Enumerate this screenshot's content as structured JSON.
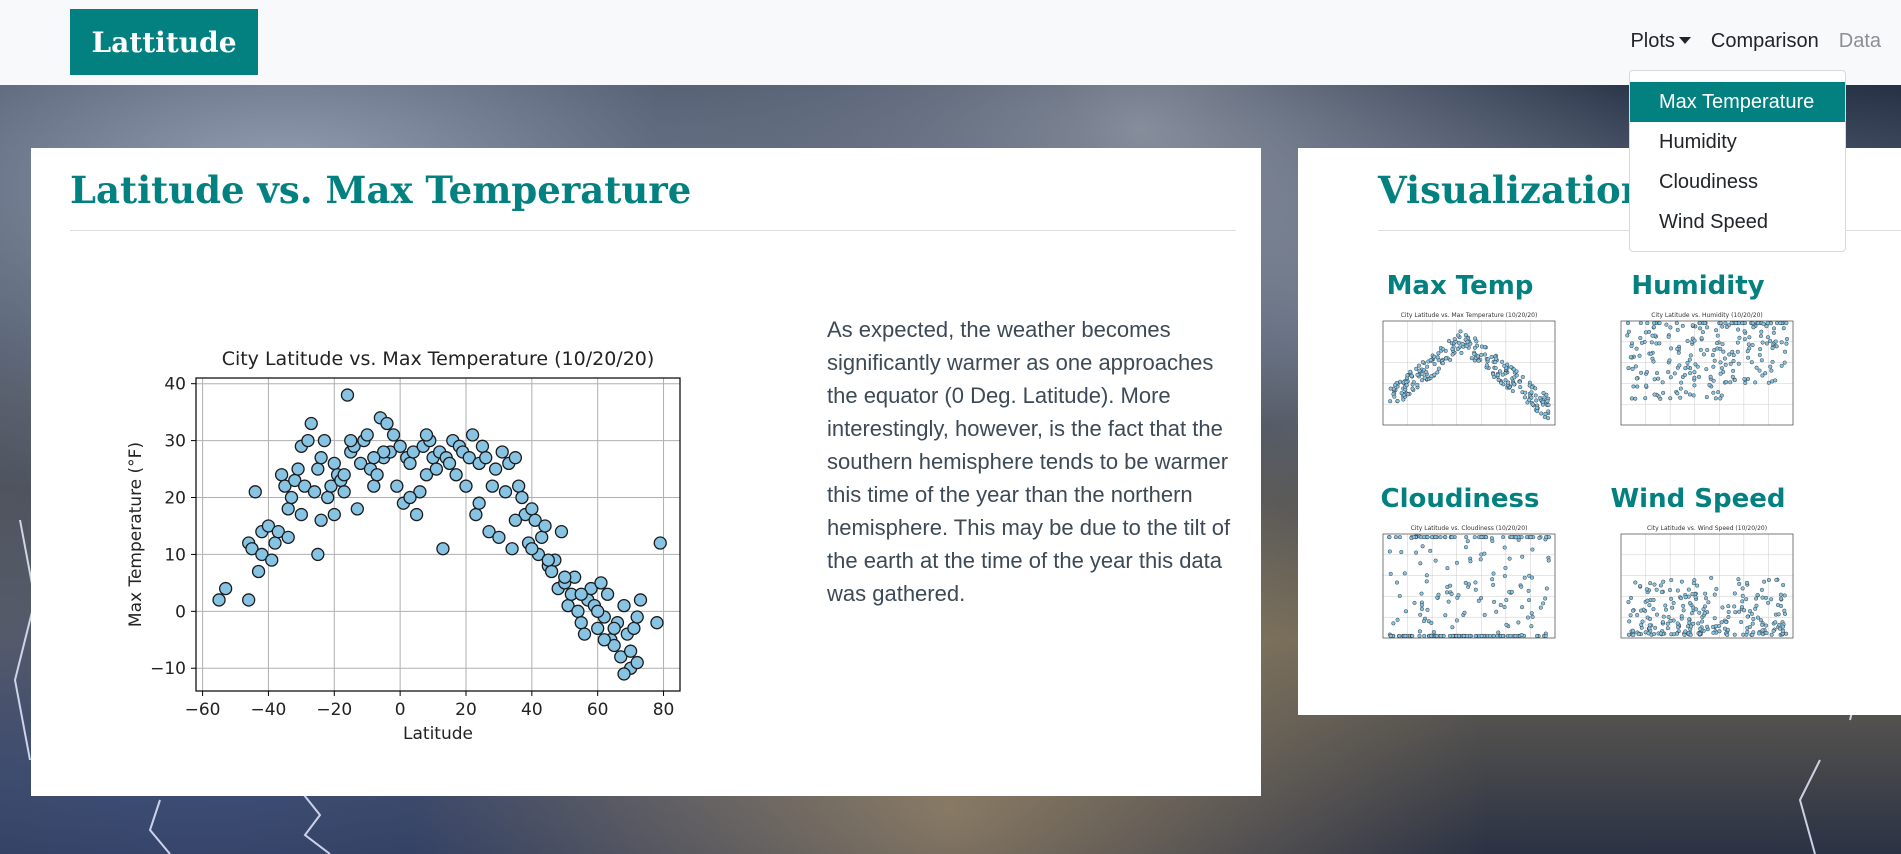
{
  "brand": "Lattitude",
  "nav": {
    "plots_label": "Plots",
    "comparison_label": "Comparison",
    "data_label": "Data"
  },
  "dropdown": {
    "items": [
      {
        "label": "Max Temperature",
        "active": true
      },
      {
        "label": "Humidity",
        "active": false
      },
      {
        "label": "Cloudiness",
        "active": false
      },
      {
        "label": "Wind Speed",
        "active": false
      }
    ]
  },
  "main": {
    "title": "Latitude vs. Max Temperature",
    "description": "As expected, the weather becomes significantly warmer as one approaches the equator (0 Deg. Latitude). More interestingly, however, is the fact that the southern hemisphere tends to be warmer this time of the year than the northern hemisphere. This may be due to the tilt of the earth at the time of the year this data was gathered."
  },
  "side": {
    "title": "Visualizations",
    "thumbs": [
      {
        "label": "Max Temp",
        "chart_title": "City Latitude vs. Max Temperature (10/20/20)"
      },
      {
        "label": "Humidity",
        "chart_title": "City Latitude vs. Humidity (10/20/20)"
      },
      {
        "label": "Cloudiness",
        "chart_title": "City Latitude vs. Cloudiness (10/20/20)"
      },
      {
        "label": "Wind Speed",
        "chart_title": "City Latitude vs. Wind Speed (10/20/20)"
      }
    ]
  },
  "colors": {
    "accent": "#038180",
    "marker_fill": "#87c3e3",
    "marker_edge": "#1a1a1a"
  },
  "chart_data": {
    "type": "scatter",
    "title": "City Latitude vs. Max Temperature (10/20/20)",
    "xlabel": "Latitude",
    "ylabel": "Max Temperature (°F)",
    "xlim": [
      -62,
      85
    ],
    "ylim": [
      -14,
      41
    ],
    "xticks": [
      "−60",
      "−40",
      "−20",
      "0",
      "20",
      "40",
      "60",
      "80"
    ],
    "yticks": [
      "−10",
      "0",
      "10",
      "20",
      "30",
      "40"
    ],
    "grid": true,
    "x": [
      -55,
      -53,
      -46,
      -46,
      -45,
      -44,
      -43,
      -42,
      -42,
      -40,
      -39,
      -38,
      -37,
      -36,
      -35,
      -34,
      -34,
      -33,
      -32,
      -31,
      -30,
      -30,
      -29,
      -28,
      -27,
      -26,
      -25,
      -24,
      -24,
      -23,
      -22,
      -21,
      -20,
      -20,
      -19,
      -18,
      -17,
      -16,
      -15,
      -14,
      -13,
      -12,
      -11,
      -10,
      -9,
      -8,
      -7,
      -6,
      -5,
      -4,
      -3,
      -2,
      -1,
      0,
      1,
      2,
      3,
      4,
      5,
      6,
      7,
      8,
      9,
      10,
      11,
      12,
      13,
      14,
      15,
      16,
      17,
      18,
      19,
      20,
      21,
      22,
      23,
      24,
      25,
      26,
      27,
      28,
      29,
      30,
      31,
      32,
      33,
      34,
      35,
      36,
      37,
      38,
      39,
      40,
      41,
      42,
      43,
      44,
      45,
      46,
      47,
      48,
      49,
      50,
      51,
      52,
      53,
      54,
      55,
      56,
      57,
      58,
      59,
      60,
      61,
      62,
      63,
      64,
      65,
      66,
      67,
      68,
      69,
      70,
      71,
      72,
      73,
      78,
      79,
      -17,
      -5,
      -25,
      -15,
      -8,
      3,
      8,
      24,
      35,
      40,
      45,
      50,
      55,
      60,
      65,
      70,
      68,
      72,
      62
    ],
    "y": [
      2,
      4,
      2,
      12,
      11,
      21,
      7,
      14,
      10,
      15,
      9,
      12,
      14,
      24,
      22,
      18,
      13,
      20,
      23,
      25,
      17,
      29,
      22,
      30,
      33,
      21,
      25,
      27,
      16,
      30,
      20,
      22,
      26,
      17,
      24,
      23,
      21,
      38,
      28,
      29,
      18,
      26,
      30,
      31,
      25,
      22,
      24,
      34,
      27,
      33,
      28,
      31,
      22,
      29,
      19,
      27,
      26,
      28,
      17,
      21,
      29,
      24,
      30,
      27,
      25,
      28,
      11,
      27,
      26,
      30,
      24,
      29,
      28,
      22,
      27,
      31,
      17,
      26,
      29,
      27,
      14,
      22,
      25,
      13,
      28,
      21,
      26,
      11,
      27,
      22,
      20,
      17,
      12,
      18,
      16,
      10,
      13,
      15,
      8,
      7,
      9,
      4,
      14,
      5,
      1,
      3,
      6,
      0,
      -2,
      -4,
      2,
      4,
      1,
      -3,
      5,
      -1,
      3,
      -5,
      -6,
      -2,
      -8,
      1,
      -4,
      -10,
      -3,
      -1,
      2,
      -2,
      12,
      24,
      28,
      10,
      30,
      27,
      20,
      31,
      19,
      16,
      11,
      9,
      6,
      3,
      0,
      -3,
      -7,
      -11,
      -9,
      -5
    ]
  }
}
